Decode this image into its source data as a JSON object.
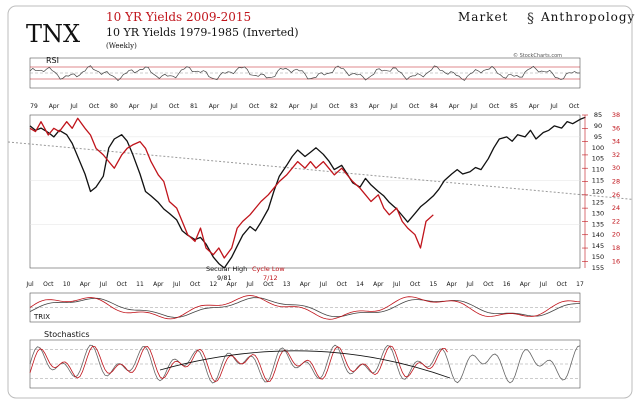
{
  "header": {
    "ticker": "TNX",
    "title_red": "10 YR Yields 2009-2015",
    "title_black": "10 YR Yields 1979-1985 (Inverted)",
    "subtitle": "(Weekly)",
    "brand_left": "Market",
    "brand_right": "Anthropology",
    "watermark": "© StockCharts.com"
  },
  "colors": {
    "red": "#c0141b",
    "black": "#111111",
    "grey": "#8a8a8a",
    "trend": "#9a9a9a"
  },
  "panels": {
    "rsi_label": "RSI",
    "trix_label": "TRIX",
    "stoch_label": "Stochastics"
  },
  "annotations": {
    "secular_high": "Secular High",
    "secular_high_date": "9/81",
    "cycle_low": "Cycle Low",
    "cycle_low_date": "7/12"
  },
  "top_axis_labels": [
    "79",
    "Apr",
    "Jul",
    "Oct",
    "80",
    "Apr",
    "Jul",
    "Oct",
    "81",
    "Apr",
    "Jul",
    "Oct",
    "82",
    "Apr",
    "Jul",
    "Oct",
    "83",
    "Apr",
    "Jul",
    "Oct",
    "84",
    "Apr",
    "Jul",
    "Oct",
    "85",
    "Apr",
    "Jul",
    "Oct"
  ],
  "bottom_axis_labels": [
    "Jul",
    "Oct",
    "10",
    "Apr",
    "Jul",
    "Oct",
    "11",
    "Apr",
    "Jul",
    "Oct",
    "12",
    "Apr",
    "Jul",
    "Oct",
    "13",
    "Apr",
    "Jul",
    "Oct",
    "14",
    "Apr",
    "Jul",
    "Oct",
    "15",
    "Apr",
    "Jul",
    "Oct",
    "16",
    "Apr",
    "Jul",
    "Oct",
    "17"
  ],
  "chart_data": [
    {
      "type": "line",
      "name": "main",
      "x_bottom_index": [
        0,
        1,
        2,
        3,
        4,
        5,
        6,
        7,
        8,
        9,
        10,
        11,
        12,
        13,
        14,
        15,
        16,
        17,
        18,
        19,
        20,
        21,
        22,
        23,
        24,
        25,
        26,
        27,
        28,
        29,
        30
      ],
      "right_axis_inverted_1979_1985": {
        "ticks": [
          85,
          90,
          95,
          100,
          105,
          110,
          115,
          120,
          125,
          130,
          135,
          140,
          145,
          150,
          155
        ],
        "range": [
          85,
          155
        ]
      },
      "right_axis_2009_2015": {
        "ticks": [
          38,
          36,
          34,
          32,
          30,
          28,
          26,
          24,
          22,
          20,
          18,
          16
        ],
        "range": [
          15,
          38
        ]
      },
      "series": [
        {
          "label": "10 YR Yields 1979-1985 (Inverted)",
          "color": "black",
          "axis": "right_inverted",
          "x": [
            0.0,
            0.3,
            0.6,
            1.0,
            1.3,
            1.6,
            2.0,
            2.3,
            2.6,
            3.0,
            3.3,
            3.6,
            4.0,
            4.3,
            4.6,
            5.0,
            5.3,
            5.6,
            6.0,
            6.3,
            6.6,
            7.0,
            7.3,
            7.6,
            8.0,
            8.3,
            8.6,
            9.0,
            9.3,
            9.6,
            10.0,
            10.3,
            10.6,
            11.0,
            11.3,
            11.6,
            12.0,
            12.3,
            12.6,
            13.0,
            13.3,
            13.6,
            14.0,
            14.3,
            14.6,
            15.0,
            15.3,
            15.6,
            16.0,
            16.3,
            16.6,
            17.0,
            17.3,
            17.6,
            18.0,
            18.3,
            18.6,
            19.0,
            19.3,
            19.6,
            20.0,
            20.3,
            20.6,
            21.0,
            21.3,
            21.6,
            22.0,
            22.3,
            22.6,
            23.0,
            23.3,
            23.6,
            24.0,
            24.3,
            24.6,
            25.0,
            25.3,
            25.6,
            26.0,
            26.3,
            26.6,
            27.0,
            27.3,
            27.6,
            28.0,
            28.3,
            28.6,
            29.0,
            29.3,
            29.6,
            30.0,
            30.3
          ],
          "values": [
            90,
            92,
            91,
            93,
            95,
            92,
            94,
            98,
            104,
            112,
            120,
            118,
            113,
            100,
            96,
            94,
            97,
            103,
            112,
            120,
            122,
            125,
            128,
            130,
            133,
            138,
            140,
            142,
            141,
            144,
            150,
            153,
            155,
            150,
            145,
            140,
            136,
            138,
            134,
            128,
            120,
            113,
            108,
            104,
            101,
            104,
            102,
            100,
            103,
            106,
            110,
            108,
            112,
            116,
            118,
            114,
            117,
            120,
            122,
            125,
            128,
            131,
            134,
            130,
            127,
            125,
            122,
            119,
            115,
            112,
            110,
            112,
            111,
            109,
            110,
            105,
            100,
            96,
            95,
            97,
            94,
            95,
            92,
            96,
            93,
            92,
            90,
            91,
            88,
            89,
            87,
            86
          ]
        },
        {
          "label": "10 YR Yields 2009-2015",
          "color": "red",
          "axis": "right",
          "x": [
            0.0,
            0.3,
            0.6,
            1.0,
            1.3,
            1.6,
            2.0,
            2.3,
            2.6,
            3.0,
            3.3,
            3.6,
            4.0,
            4.3,
            4.6,
            5.0,
            5.3,
            5.6,
            6.0,
            6.3,
            6.6,
            7.0,
            7.3,
            7.6,
            8.0,
            8.3,
            8.6,
            9.0,
            9.3,
            9.6,
            10.0,
            10.3,
            10.6,
            11.0,
            11.3,
            11.6,
            12.0,
            12.3,
            12.6,
            13.0,
            13.3,
            13.6,
            14.0,
            14.3,
            14.6,
            15.0,
            15.3,
            15.6,
            16.0,
            16.3,
            16.6,
            17.0,
            17.3,
            17.6,
            18.0,
            18.3,
            18.6,
            19.0,
            19.3,
            19.6,
            20.0,
            20.3,
            20.6,
            21.0,
            21.3,
            21.6,
            22.0
          ],
          "values": [
            36,
            35.5,
            37,
            35,
            36,
            35.5,
            37,
            36,
            37.5,
            36,
            35,
            33,
            32,
            31,
            30,
            32,
            33,
            33.5,
            34,
            33,
            31,
            29,
            28,
            25,
            24,
            22,
            20,
            19,
            21,
            18,
            17,
            18,
            16.5,
            18,
            21,
            22,
            23,
            24,
            25,
            26,
            27,
            28,
            29,
            30,
            31,
            30,
            31,
            30,
            31,
            30,
            29,
            30,
            29,
            28,
            27,
            26,
            25,
            26,
            24,
            23,
            24,
            22,
            21,
            20,
            18,
            22,
            23
          ]
        }
      ],
      "trendline_inverted": {
        "x": [
          0,
          31
        ],
        "values": [
          101,
          119
        ]
      }
    },
    {
      "type": "line",
      "name": "RSI",
      "ylim": [
        0,
        100
      ],
      "levels": [
        30,
        50,
        70
      ]
    },
    {
      "type": "line",
      "name": "TRIX"
    },
    {
      "type": "line",
      "name": "Stochastics",
      "ylim": [
        0,
        100
      ],
      "levels": [
        20,
        50,
        80
      ]
    }
  ]
}
